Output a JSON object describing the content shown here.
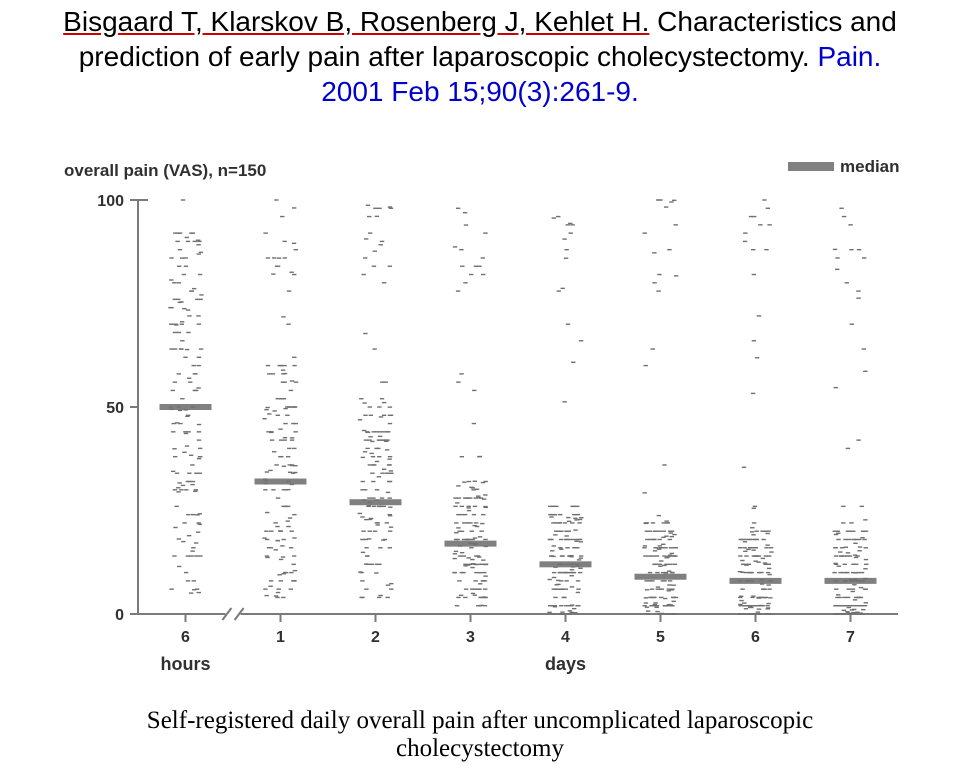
{
  "citation": {
    "authors": "Bisgaard T, Klarskov B, Rosenberg J, Kehlet H.",
    "title_a": "Characteristics and prediction of early pain after laparoscopic cholecystectomy.",
    "journal": "Pain. 2001 Feb 15;90(3):261-9.",
    "authors_color": "#000000",
    "title_color": "#000000",
    "journal_color": "#0000cc",
    "fontsize": 28
  },
  "chart": {
    "type": "strip-scatter-with-median",
    "title_left": "overall pain (VAS), n=150",
    "legend_label": "median",
    "y_axis_label": "",
    "y_ticks": [
      0,
      50,
      100
    ],
    "ylim": [
      0,
      100
    ],
    "x_labels": [
      "6",
      "1",
      "2",
      "3",
      "4",
      "5",
      "6",
      "7"
    ],
    "x_group_labels": {
      "hours": [
        0
      ],
      "days": [
        1,
        2,
        3,
        4,
        5,
        6,
        7
      ]
    },
    "n_per_series": 150,
    "medians": [
      50,
      32,
      27,
      17,
      12,
      9,
      8,
      8
    ],
    "background_color": "#ffffff",
    "axis_color": "#7a7a7a",
    "point_color": "#707070",
    "median_color": "#808080",
    "title_fontsize": 17,
    "tick_fontsize": 16,
    "xgroup_fontsize": 18,
    "point_halfwidth": 2.2,
    "median_bar_halfwidth": 26,
    "median_bar_height": 6,
    "jitter_halfwidth": 16,
    "axis_linewidth": 2,
    "axis_break": true
  },
  "caption": {
    "text": "Self-registered daily overall pain after uncomplicated laparoscopic cholecystectomy",
    "fontsize": 25,
    "color": "#000000"
  }
}
